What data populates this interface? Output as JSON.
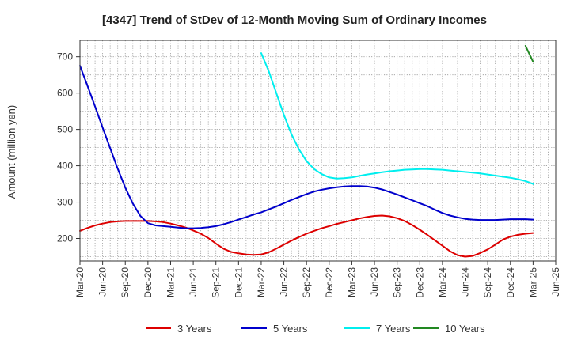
{
  "chart_data": {
    "type": "line",
    "title": "[4347]  Trend of StDev of 12-Month Moving Sum of Ordinary Incomes",
    "ylabel": "Amount (million yen)",
    "xlabel": "",
    "x_ticks": [
      "Mar-20",
      "Jun-20",
      "Sep-20",
      "Dec-20",
      "Mar-21",
      "Jun-21",
      "Sep-21",
      "Dec-21",
      "Mar-22",
      "Jun-22",
      "Sep-22",
      "Dec-22",
      "Mar-23",
      "Jun-23",
      "Sep-23",
      "Dec-23",
      "Mar-24",
      "Jun-24",
      "Sep-24",
      "Dec-24",
      "Mar-25",
      "Jun-25"
    ],
    "y_ticks": [
      200,
      300,
      400,
      500,
      600,
      700
    ],
    "ylim": [
      138,
      745
    ],
    "grid": true,
    "legend_position": "bottom",
    "series": [
      {
        "name": "3 Years",
        "color": "#dd0000",
        "x": [
          "Mar-20",
          "Apr-20",
          "May-20",
          "Jun-20",
          "Jul-20",
          "Aug-20",
          "Sep-20",
          "Oct-20",
          "Nov-20",
          "Dec-20",
          "Jan-21",
          "Feb-21",
          "Mar-21",
          "Apr-21",
          "May-21",
          "Jun-21",
          "Jul-21",
          "Aug-21",
          "Sep-21",
          "Oct-21",
          "Nov-21",
          "Dec-21",
          "Jan-22",
          "Feb-22",
          "Mar-22",
          "Apr-22",
          "May-22",
          "Jun-22",
          "Jul-22",
          "Aug-22",
          "Sep-22",
          "Oct-22",
          "Nov-22",
          "Dec-22",
          "Jan-23",
          "Feb-23",
          "Mar-23",
          "Apr-23",
          "May-23",
          "Jun-23",
          "Jul-23",
          "Aug-23",
          "Sep-23",
          "Oct-23",
          "Nov-23",
          "Dec-23",
          "Jan-24",
          "Feb-24",
          "Mar-24",
          "Apr-24",
          "May-24",
          "Jun-24",
          "Jul-24",
          "Aug-24",
          "Sep-24",
          "Oct-24",
          "Nov-24",
          "Dec-24",
          "Jan-25",
          "Feb-25",
          "Mar-25"
        ],
        "values": [
          221,
          229,
          236,
          241,
          245,
          247,
          248,
          248,
          248,
          248,
          247,
          245,
          241,
          236,
          230,
          222,
          213,
          201,
          186,
          172,
          163,
          159,
          156,
          155,
          156,
          162,
          172,
          183,
          194,
          204,
          213,
          221,
          228,
          234,
          240,
          245,
          250,
          255,
          259,
          262,
          263,
          261,
          256,
          248,
          237,
          224,
          210,
          195,
          180,
          165,
          154,
          150,
          152,
          160,
          170,
          183,
          197,
          205,
          210,
          213,
          215
        ]
      },
      {
        "name": "5 Years",
        "color": "#0000cc",
        "x": [
          "Mar-20",
          "Apr-20",
          "May-20",
          "Jun-20",
          "Jul-20",
          "Aug-20",
          "Sep-20",
          "Oct-20",
          "Nov-20",
          "Dec-20",
          "Jan-21",
          "Feb-21",
          "Mar-21",
          "Apr-21",
          "May-21",
          "Jun-21",
          "Jul-21",
          "Aug-21",
          "Sep-21",
          "Oct-21",
          "Nov-21",
          "Dec-21",
          "Jan-22",
          "Feb-22",
          "Mar-22",
          "Apr-22",
          "May-22",
          "Jun-22",
          "Jul-22",
          "Aug-22",
          "Sep-22",
          "Oct-22",
          "Nov-22",
          "Dec-22",
          "Jan-23",
          "Feb-23",
          "Mar-23",
          "Apr-23",
          "May-23",
          "Jun-23",
          "Jul-23",
          "Aug-23",
          "Sep-23",
          "Oct-23",
          "Nov-23",
          "Dec-23",
          "Jan-24",
          "Feb-24",
          "Mar-24",
          "Apr-24",
          "May-24",
          "Jun-24",
          "Jul-24",
          "Aug-24",
          "Sep-24",
          "Oct-24",
          "Nov-24",
          "Dec-24",
          "Jan-25",
          "Feb-25",
          "Mar-25"
        ],
        "values": [
          675,
          620,
          563,
          505,
          448,
          392,
          340,
          296,
          262,
          242,
          236,
          234,
          232,
          230,
          228,
          228,
          229,
          231,
          234,
          239,
          245,
          252,
          259,
          266,
          272,
          280,
          288,
          297,
          306,
          314,
          322,
          329,
          334,
          338,
          341,
          343,
          344,
          344,
          343,
          340,
          335,
          328,
          321,
          313,
          305,
          297,
          289,
          279,
          270,
          263,
          258,
          254,
          252,
          251,
          251,
          251,
          252,
          253,
          253,
          253,
          252
        ]
      },
      {
        "name": "7 Years",
        "color": "#00eeee",
        "x": [
          "Mar-22",
          "Apr-22",
          "May-22",
          "Jun-22",
          "Jul-22",
          "Aug-22",
          "Sep-22",
          "Oct-22",
          "Nov-22",
          "Dec-22",
          "Jan-23",
          "Feb-23",
          "Mar-23",
          "Apr-23",
          "May-23",
          "Jun-23",
          "Jul-23",
          "Aug-23",
          "Sep-23",
          "Oct-23",
          "Nov-23",
          "Dec-23",
          "Jan-24",
          "Feb-24",
          "Mar-24",
          "Apr-24",
          "May-24",
          "Jun-24",
          "Jul-24",
          "Aug-24",
          "Sep-24",
          "Oct-24",
          "Nov-24",
          "Dec-24",
          "Jan-25",
          "Feb-25",
          "Mar-25"
        ],
        "values": [
          710,
          660,
          600,
          540,
          487,
          445,
          413,
          391,
          377,
          368,
          365,
          366,
          368,
          372,
          376,
          379,
          382,
          385,
          387,
          389,
          390,
          391,
          391,
          390,
          389,
          387,
          385,
          383,
          381,
          379,
          376,
          373,
          370,
          367,
          363,
          358,
          350
        ]
      },
      {
        "name": "10 Years",
        "color": "#228822",
        "x": [
          "Feb-25",
          "Mar-25"
        ],
        "values": [
          730,
          686
        ]
      }
    ]
  }
}
